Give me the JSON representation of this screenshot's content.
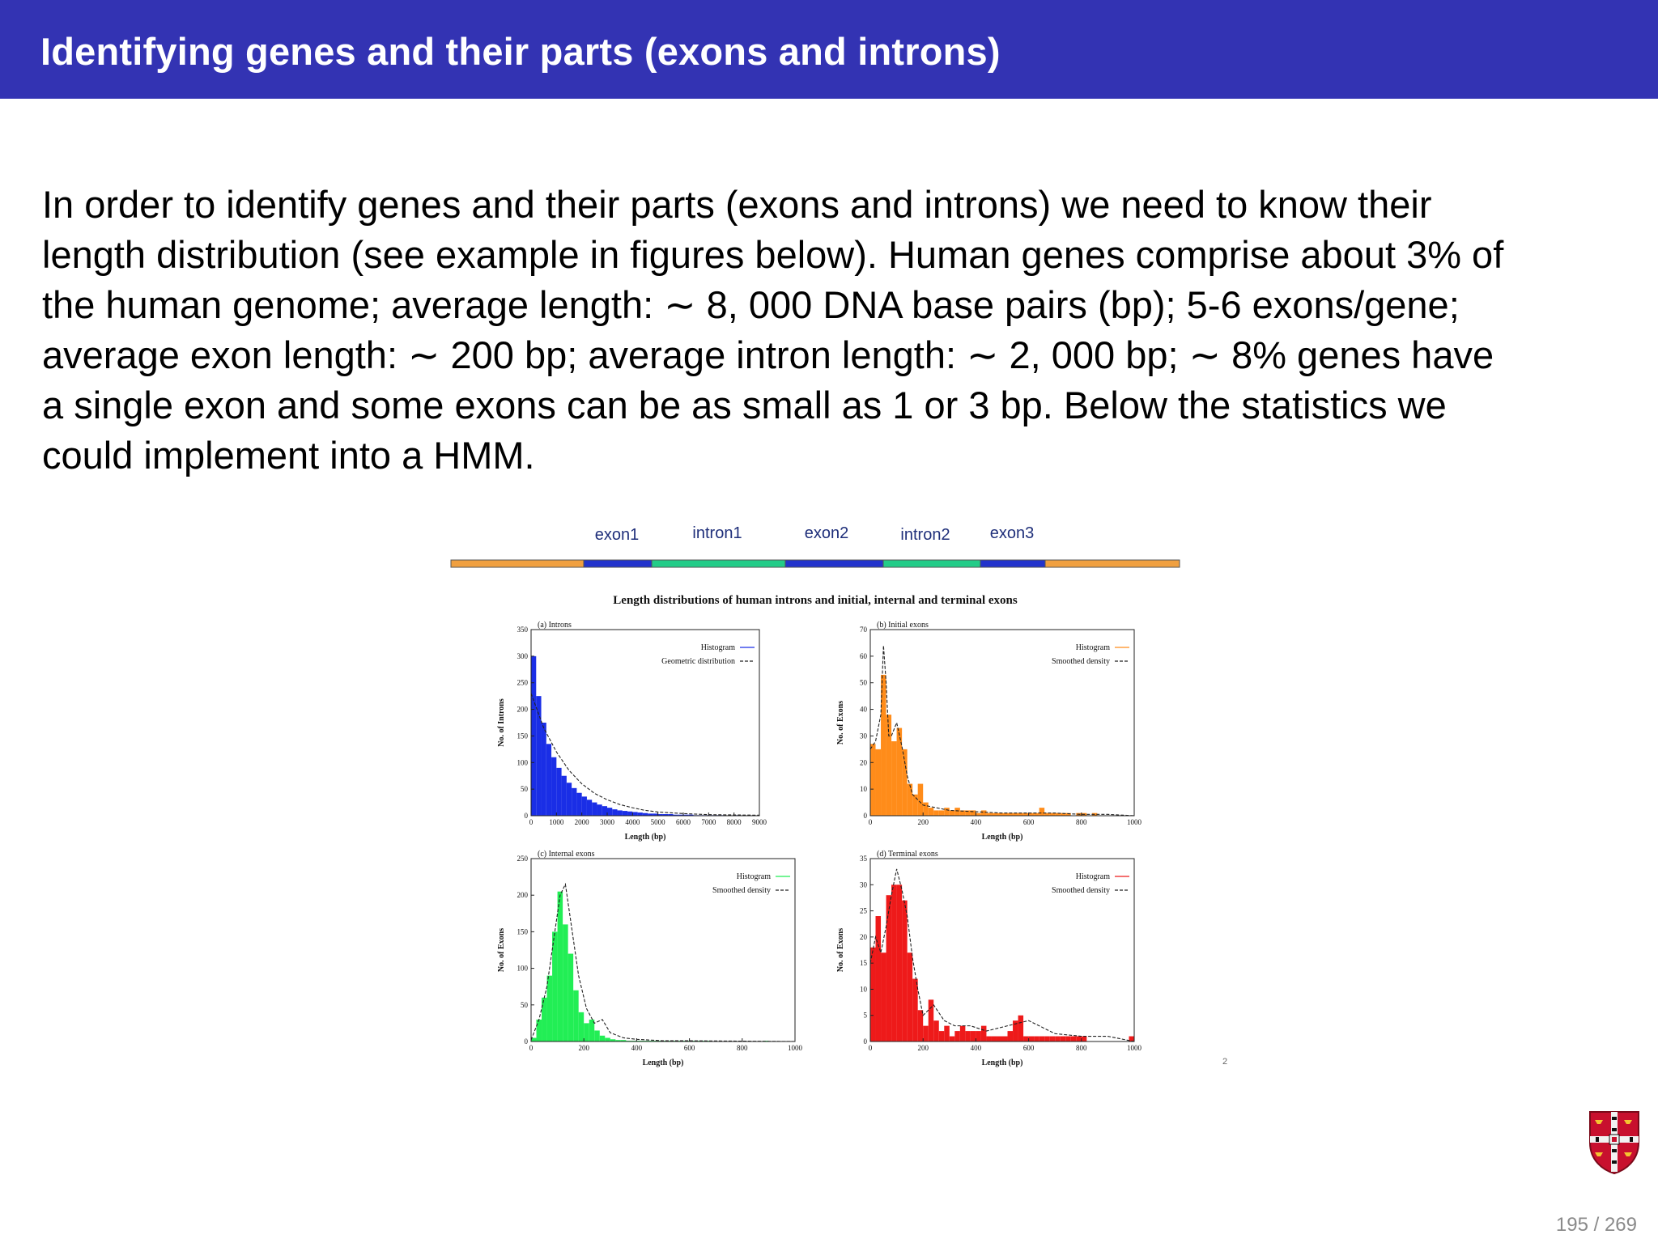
{
  "header": {
    "title": "Identifying genes and their parts (exons and introns)"
  },
  "body": {
    "lines": [
      "In order to identify genes and their parts (exons and introns) we need to know their",
      "length distribution (see example in figures below). Human genes comprise about 3% of",
      "the human genome; average length: ∼ 8, 000 DNA base pairs (bp); 5-6 exons/gene;",
      "average exon length: ∼ 200 bp; average intron length: ∼ 2, 000 bp; ∼ 8% genes have",
      "a single exon and some exons can be as small as 1 or 3 bp. Below the statistics we",
      "could implement into a HMM."
    ]
  },
  "gene_bar": {
    "labels": [
      "exon1",
      "intron1",
      "exon2",
      "intron2",
      "exon3"
    ],
    "colors": {
      "flank": "#f0a040",
      "exon": "#2233cc",
      "intron": "#22cc88"
    }
  },
  "figure": {
    "title": "Length distributions of human introns and initial, internal and terminal exons",
    "footnote": "2"
  },
  "chart_data": [
    {
      "type": "bar",
      "title": "(a) Introns",
      "xlabel": "Length (bp)",
      "ylabel": "No. of Introns",
      "xlim": [
        0,
        9000
      ],
      "ylim": [
        0,
        350
      ],
      "xticks": [
        "0",
        "1000",
        "2000",
        "3000",
        "4000",
        "5000",
        "6000",
        "7000",
        "8000",
        "9000"
      ],
      "yticks": [
        "0",
        "50",
        "100",
        "150",
        "200",
        "250",
        "300",
        "350"
      ],
      "legend": [
        "Histogram",
        "Geometric distribution"
      ],
      "legend_position": "top-right",
      "color": "#1a2ee6",
      "bin_width": 200,
      "values": [
        300,
        225,
        175,
        135,
        110,
        90,
        75,
        62,
        52,
        43,
        36,
        30,
        25,
        21,
        18,
        15,
        12,
        10,
        9,
        8,
        7,
        6,
        5,
        4,
        4,
        3,
        3,
        3,
        2,
        2,
        2,
        2,
        1,
        1,
        1,
        1,
        1,
        1,
        0,
        0,
        1,
        0,
        0,
        0,
        0
      ],
      "curve_x": [
        0,
        500,
        1000,
        1500,
        2000,
        2500,
        3000,
        3500,
        4000,
        4500,
        5000,
        6000,
        7000,
        9000
      ],
      "curve_y": [
        230,
        165,
        120,
        85,
        60,
        42,
        30,
        21,
        15,
        10,
        7,
        4,
        2,
        1
      ]
    },
    {
      "type": "bar",
      "title": "(b) Initial exons",
      "xlabel": "Length (bp)",
      "ylabel": "No. of Exons",
      "xlim": [
        0,
        1000
      ],
      "ylim": [
        0,
        70
      ],
      "xticks": [
        "0",
        "200",
        "400",
        "600",
        "800",
        "1000"
      ],
      "yticks": [
        "0",
        "10",
        "20",
        "30",
        "40",
        "50",
        "60",
        "70"
      ],
      "legend": [
        "Histogram",
        "Smoothed density"
      ],
      "legend_position": "top-right",
      "color": "#ff8c1a",
      "bin_width": 20,
      "values": [
        27,
        25,
        53,
        38,
        28,
        33,
        25,
        12,
        8,
        12,
        5,
        3,
        2,
        2,
        3,
        2,
        3,
        2,
        2,
        2,
        1,
        2,
        1,
        1,
        1,
        1,
        1,
        1,
        1,
        1,
        1,
        1,
        3,
        1,
        1,
        1,
        1,
        1,
        0,
        1,
        1,
        0,
        1,
        0,
        0,
        0,
        0,
        0,
        0,
        0
      ],
      "curve_x": [
        0,
        20,
        40,
        50,
        60,
        70,
        80,
        100,
        120,
        140,
        160,
        200,
        250,
        300,
        400,
        500,
        600,
        700,
        800,
        900,
        1000
      ],
      "curve_y": [
        25,
        28,
        38,
        64,
        50,
        30,
        30,
        35,
        26,
        15,
        8,
        4,
        3,
        2,
        1.5,
        1,
        1,
        1,
        0.5,
        0.5,
        0
      ]
    },
    {
      "type": "bar",
      "title": "(c) Internal exons",
      "xlabel": "Length (bp)",
      "ylabel": "No. of Exons",
      "xlim": [
        0,
        1000
      ],
      "ylim": [
        0,
        250
      ],
      "xticks": [
        "0",
        "200",
        "400",
        "600",
        "800",
        "1000"
      ],
      "yticks": [
        "0",
        "50",
        "100",
        "150",
        "200",
        "250"
      ],
      "legend": [
        "Histogram",
        "Smoothed density"
      ],
      "legend_position": "top-right",
      "color": "#22ee55",
      "bin_width": 20,
      "values": [
        5,
        30,
        60,
        90,
        150,
        205,
        160,
        120,
        70,
        40,
        25,
        30,
        15,
        8,
        5,
        3,
        2,
        2,
        1,
        1,
        1,
        1,
        1,
        1,
        1,
        1,
        1,
        1,
        1,
        1,
        1,
        1,
        1,
        1,
        0,
        0,
        0,
        0,
        0,
        0,
        0,
        0,
        0,
        0,
        1,
        0,
        0,
        0,
        0,
        0
      ],
      "curve_x": [
        0,
        30,
        60,
        90,
        110,
        130,
        150,
        180,
        210,
        240,
        270,
        300,
        350,
        400,
        500,
        600,
        800,
        1000
      ],
      "curve_y": [
        2,
        30,
        75,
        150,
        200,
        215,
        165,
        90,
        45,
        25,
        30,
        12,
        5,
        3,
        1,
        1,
        0.5,
        0
      ]
    },
    {
      "type": "bar",
      "title": "(d) Terminal exons",
      "xlabel": "Length (bp)",
      "ylabel": "No. of Exons",
      "xlim": [
        0,
        1000
      ],
      "ylim": [
        0,
        35
      ],
      "xticks": [
        "0",
        "200",
        "400",
        "600",
        "800",
        "1000"
      ],
      "yticks": [
        "0",
        "5",
        "10",
        "15",
        "20",
        "25",
        "30",
        "35"
      ],
      "legend": [
        "Histogram",
        "Smoothed density"
      ],
      "legend_position": "top-right",
      "color": "#ee1a1a",
      "bin_width": 20,
      "values": [
        18,
        24,
        17,
        28,
        30,
        30,
        27,
        17,
        12,
        6,
        3,
        8,
        4,
        2,
        3,
        1,
        2,
        3,
        2,
        2,
        2,
        3,
        1,
        1,
        1,
        1,
        2,
        4,
        5,
        1,
        1,
        1,
        1,
        1,
        1,
        1,
        1,
        1,
        1,
        1,
        1,
        0,
        0,
        0,
        0,
        0,
        0,
        0,
        0,
        1
      ],
      "curve_x": [
        0,
        20,
        40,
        60,
        80,
        100,
        120,
        140,
        160,
        180,
        200,
        240,
        280,
        320,
        380,
        440,
        520,
        600,
        700,
        800,
        900,
        1000
      ],
      "curve_y": [
        15,
        20,
        17,
        22,
        28,
        33,
        29,
        24,
        16,
        10,
        5,
        7,
        4,
        3,
        3,
        2,
        3,
        4,
        1.5,
        1,
        1,
        0
      ]
    }
  ],
  "footer": {
    "page": "195 / 269"
  }
}
